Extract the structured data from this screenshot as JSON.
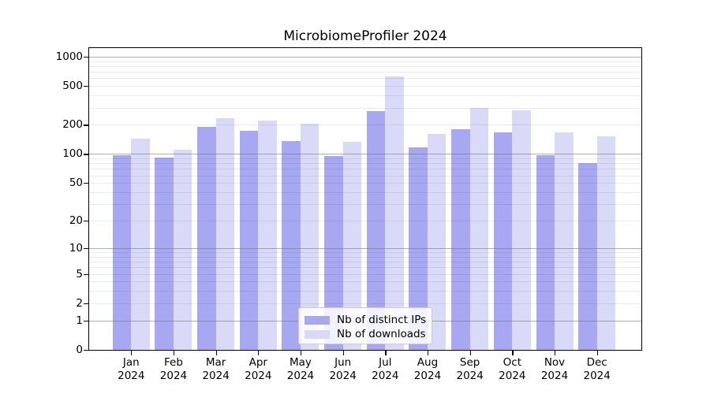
{
  "chart_data": {
    "type": "bar",
    "title": "MicrobiomeProfiler 2024",
    "categories": [
      "Jan 2024",
      "Feb 2024",
      "Mar 2024",
      "Apr 2024",
      "May 2024",
      "Jun 2024",
      "Jul 2024",
      "Aug 2024",
      "Sep 2024",
      "Oct 2024",
      "Nov 2024",
      "Dec 2024"
    ],
    "x_tick_month": [
      "Jan",
      "Feb",
      "Mar",
      "Apr",
      "May",
      "Jun",
      "Jul",
      "Aug",
      "Sep",
      "Oct",
      "Nov",
      "Dec"
    ],
    "x_tick_year": "2024",
    "series": [
      {
        "name": "Nb of distinct IPs",
        "color": "#a8a8f2",
        "values": [
          97,
          92,
          189,
          173,
          137,
          95,
          275,
          117,
          181,
          167,
          97,
          80
        ]
      },
      {
        "name": "Nb of downloads",
        "color": "#d9d9f8",
        "values": [
          143,
          110,
          232,
          220,
          206,
          133,
          625,
          160,
          297,
          280,
          167,
          152
        ]
      }
    ],
    "yscale": "log1p",
    "ylabel": "",
    "xlabel": "",
    "y_ticks": [
      0,
      1,
      2,
      5,
      10,
      20,
      50,
      100,
      200,
      500,
      1000
    ],
    "major_gridlines": [
      1,
      10,
      100,
      1000
    ],
    "ylim": [
      0,
      1200
    ],
    "grid": true,
    "legend_position": "lower center"
  },
  "legend": {
    "items": [
      {
        "label": "Nb of distinct IPs"
      },
      {
        "label": "Nb of downloads"
      }
    ]
  },
  "colors": {
    "distinct_ips_bar": "#a8a8f2",
    "downloads_bar": "#d9d9f8",
    "major_grid": "#6e6e6e",
    "minor_grid": "#e8e8e8",
    "axis": "#000000",
    "legend_border": "#cccccc"
  }
}
